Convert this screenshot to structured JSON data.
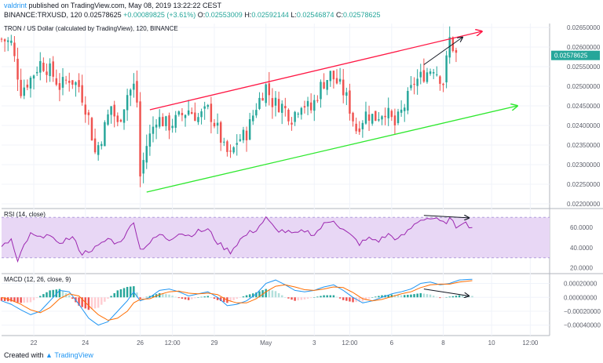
{
  "header": {
    "author": "valdrint",
    "published_text": "published on TradingView.com, May 08, 2019 13:22:22 CEST",
    "symbol": "BINANCE:TRXUSD, 120",
    "last": "0.02578625",
    "change": "+0.00089825 (+3.61%)",
    "o_label": "O:",
    "o_value": "0.02553009",
    "h_label": "H:",
    "h_value": "0.02592144",
    "l_label": "L:",
    "l_value": "0.02546874",
    "c_label": "C:",
    "c_value": "0.02578625"
  },
  "footer": {
    "created_with": "Created with",
    "brand": "TradingView"
  },
  "colors": {
    "up": "#26a69a",
    "down": "#ef5350",
    "channel_top": "#ff1744",
    "channel_bottom": "#2ee82e",
    "arrow": "#131722",
    "rsi_line": "#9c27b0",
    "rsi_band": "#e8d7f5",
    "macd_line": "#2196f3",
    "signal_line": "#ff6d00",
    "price_label_bg": "#26a69a"
  },
  "chart_data": [
    {
      "type": "candlestick",
      "title": "TRON / US Dollar (calculated by TradingView), 120, BINANCE",
      "ylim": [
        0.0219,
        0.0266
      ],
      "yticks": [
        "0.02650000",
        "0.02600000",
        "0.02550000",
        "0.02500000",
        "0.02450000",
        "0.02400000",
        "0.02350000",
        "0.02300000",
        "0.02250000",
        "0.02200000"
      ],
      "ytick_values": [
        0.0265,
        0.026,
        0.0255,
        0.025,
        0.0245,
        0.024,
        0.0235,
        0.023,
        0.0225,
        0.022
      ],
      "last_price": "0.02578625",
      "last_value": 0.02578625,
      "x_count": 142,
      "xlim": [
        0,
        170
      ],
      "xticks": [
        {
          "label": "22",
          "x": 10
        },
        {
          "label": "24",
          "x": 26
        },
        {
          "label": "26",
          "x": 43
        },
        {
          "label": "12:00",
          "x": 53
        },
        {
          "label": "29",
          "x": 66
        },
        {
          "label": "May",
          "x": 82
        },
        {
          "label": "3",
          "x": 97
        },
        {
          "label": "12:00",
          "x": 108
        },
        {
          "label": "6",
          "x": 121
        },
        {
          "label": "8",
          "x": 137
        },
        {
          "label": "10",
          "x": 152
        },
        {
          "label": "12:00",
          "x": 164
        }
      ],
      "close_anchors": [
        [
          0,
          0.0262
        ],
        [
          3,
          0.0261
        ],
        [
          6,
          0.0249
        ],
        [
          9,
          0.0252
        ],
        [
          12,
          0.0256
        ],
        [
          15,
          0.0254
        ],
        [
          18,
          0.025
        ],
        [
          21,
          0.0252
        ],
        [
          24,
          0.025
        ],
        [
          27,
          0.0242
        ],
        [
          29,
          0.0233
        ],
        [
          31,
          0.0237
        ],
        [
          34,
          0.0245
        ],
        [
          36,
          0.024
        ],
        [
          39,
          0.0248
        ],
        [
          41,
          0.025
        ],
        [
          42,
          0.0246
        ],
        [
          43,
          0.0227
        ],
        [
          45,
          0.0235
        ],
        [
          48,
          0.0242
        ],
        [
          52,
          0.024
        ],
        [
          55,
          0.0242
        ],
        [
          58,
          0.0244
        ],
        [
          61,
          0.0242
        ],
        [
          64,
          0.0244
        ],
        [
          67,
          0.0239
        ],
        [
          69,
          0.0234
        ],
        [
          71,
          0.0232
        ],
        [
          73,
          0.0236
        ],
        [
          76,
          0.0238
        ],
        [
          79,
          0.0245
        ],
        [
          82,
          0.025
        ],
        [
          84,
          0.0246
        ],
        [
          87,
          0.0245
        ],
        [
          90,
          0.0242
        ],
        [
          93,
          0.0246
        ],
        [
          96,
          0.0244
        ],
        [
          99,
          0.025
        ],
        [
          102,
          0.0253
        ],
        [
          105,
          0.025
        ],
        [
          107,
          0.0247
        ],
        [
          110,
          0.0239
        ],
        [
          113,
          0.0243
        ],
        [
          116,
          0.0242
        ],
        [
          119,
          0.0244
        ],
        [
          122,
          0.024
        ],
        [
          125,
          0.0245
        ],
        [
          128,
          0.0251
        ],
        [
          131,
          0.0253
        ],
        [
          134,
          0.0255
        ],
        [
          137,
          0.0251
        ],
        [
          139,
          0.0262
        ],
        [
          141,
          0.0258
        ]
      ],
      "channel_top": {
        "x1": 46,
        "y1": 0.0244,
        "x2": 149,
        "y2": 0.0264
      },
      "channel_bottom": {
        "x1": 45,
        "y1": 0.0223,
        "x2": 160,
        "y2": 0.0245
      },
      "arrow": {
        "x1": 131,
        "y1": 0.02555,
        "x2": 143,
        "y2": 0.02625
      }
    },
    {
      "type": "line",
      "title": "RSI (14, close)",
      "ylim": [
        15,
        78
      ],
      "yticks": [
        "60.0000",
        "40.0000",
        "20.0000"
      ],
      "ytick_values": [
        60,
        40,
        20
      ],
      "band": [
        30,
        70
      ],
      "anchors": [
        [
          0,
          40
        ],
        [
          3,
          48
        ],
        [
          5,
          25
        ],
        [
          7,
          42
        ],
        [
          9,
          53
        ],
        [
          12,
          49
        ],
        [
          14,
          55
        ],
        [
          17,
          44
        ],
        [
          20,
          48
        ],
        [
          22,
          50
        ],
        [
          25,
          34
        ],
        [
          27,
          37
        ],
        [
          30,
          41
        ],
        [
          33,
          49
        ],
        [
          36,
          44
        ],
        [
          39,
          55
        ],
        [
          41,
          67
        ],
        [
          43,
          38
        ],
        [
          46,
          45
        ],
        [
          49,
          53
        ],
        [
          52,
          48
        ],
        [
          55,
          55
        ],
        [
          58,
          52
        ],
        [
          61,
          56
        ],
        [
          64,
          58
        ],
        [
          67,
          45
        ],
        [
          69,
          40
        ],
        [
          71,
          36
        ],
        [
          74,
          48
        ],
        [
          77,
          55
        ],
        [
          79,
          58
        ],
        [
          82,
          69
        ],
        [
          85,
          58
        ],
        [
          88,
          56
        ],
        [
          91,
          53
        ],
        [
          94,
          57
        ],
        [
          97,
          53
        ],
        [
          100,
          63
        ],
        [
          103,
          68
        ],
        [
          105,
          60
        ],
        [
          107,
          55
        ],
        [
          109,
          50
        ],
        [
          111,
          44
        ],
        [
          114,
          49
        ],
        [
          117,
          47
        ],
        [
          120,
          53
        ],
        [
          123,
          48
        ],
        [
          126,
          56
        ],
        [
          129,
          66
        ],
        [
          131,
          69
        ],
        [
          134,
          69
        ],
        [
          137,
          64
        ],
        [
          139,
          68
        ],
        [
          141,
          61
        ],
        [
          143,
          66
        ],
        [
          145,
          62
        ],
        [
          146,
          60
        ]
      ],
      "arrow": {
        "x1": 131,
        "y1": 72,
        "x2": 145,
        "y2": 69.5
      }
    },
    {
      "type": "bar+line",
      "title": "MACD (12, 26, close, 9)",
      "ylim": [
        -0.00055,
        0.00033
      ],
      "yticks": [
        "0.00020000",
        "0.00000000",
        "−0.00020000",
        "−0.00040000"
      ],
      "ytick_values": [
        0.0002,
        0,
        -0.0002,
        -0.0004
      ],
      "macd_anchors": [
        [
          0,
          -5e-05
        ],
        [
          3,
          -0.0001
        ],
        [
          6,
          -0.00018
        ],
        [
          9,
          -0.00025
        ],
        [
          12,
          -0.0002
        ],
        [
          15,
          -5e-05
        ],
        [
          18,
          0.0001
        ],
        [
          21,
          8e-05
        ],
        [
          24,
          -0.0001
        ],
        [
          27,
          -0.0003
        ],
        [
          30,
          -0.0004
        ],
        [
          33,
          -0.00035
        ],
        [
          36,
          -0.0002
        ],
        [
          39,
          -5e-05
        ],
        [
          41,
          8e-05
        ],
        [
          43,
          -5e-05
        ],
        [
          46,
          0.0
        ],
        [
          49,
          0.0001
        ],
        [
          52,
          0.00012
        ],
        [
          55,
          8e-05
        ],
        [
          58,
          2e-05
        ],
        [
          61,
          5e-05
        ],
        [
          64,
          8e-05
        ],
        [
          67,
          0.0
        ],
        [
          70,
          -0.00012
        ],
        [
          73,
          -0.0001
        ],
        [
          76,
          -5e-05
        ],
        [
          79,
          5e-05
        ],
        [
          82,
          0.0002
        ],
        [
          85,
          0.00025
        ],
        [
          88,
          0.00018
        ],
        [
          91,
          0.0001
        ],
        [
          94,
          8e-05
        ],
        [
          97,
          0.0001
        ],
        [
          100,
          0.00015
        ],
        [
          103,
          0.00018
        ],
        [
          106,
          0.0001
        ],
        [
          109,
          0.0
        ],
        [
          112,
          -8e-05
        ],
        [
          115,
          -5e-05
        ],
        [
          118,
          0.0
        ],
        [
          121,
          5e-05
        ],
        [
          124,
          8e-05
        ],
        [
          127,
          0.00012
        ],
        [
          130,
          0.0002
        ],
        [
          133,
          0.00022
        ],
        [
          136,
          0.00018
        ],
        [
          139,
          0.0002
        ],
        [
          142,
          0.00025
        ],
        [
          146,
          0.00026
        ]
      ],
      "signal_anchors": [
        [
          0,
          0.0
        ],
        [
          3,
          -4e-05
        ],
        [
          6,
          -0.0001
        ],
        [
          9,
          -0.00018
        ],
        [
          12,
          -0.00022
        ],
        [
          15,
          -0.00015
        ],
        [
          18,
          -2e-05
        ],
        [
          21,
          5e-05
        ],
        [
          24,
          2e-05
        ],
        [
          27,
          -0.00012
        ],
        [
          30,
          -0.00025
        ],
        [
          33,
          -0.00033
        ],
        [
          36,
          -0.0003
        ],
        [
          39,
          -0.0002
        ],
        [
          41,
          -8e-05
        ],
        [
          43,
          -3e-05
        ],
        [
          46,
          -2e-05
        ],
        [
          49,
          4e-05
        ],
        [
          52,
          8e-05
        ],
        [
          55,
          9e-05
        ],
        [
          58,
          6e-05
        ],
        [
          61,
          5e-05
        ],
        [
          64,
          6e-05
        ],
        [
          67,
          4e-05
        ],
        [
          70,
          -4e-05
        ],
        [
          73,
          -8e-05
        ],
        [
          76,
          -8e-05
        ],
        [
          79,
          -2e-05
        ],
        [
          82,
          8e-05
        ],
        [
          85,
          0.00016
        ],
        [
          88,
          0.00018
        ],
        [
          91,
          0.00015
        ],
        [
          94,
          0.00011
        ],
        [
          97,
          0.0001
        ],
        [
          100,
          0.00012
        ],
        [
          103,
          0.00015
        ],
        [
          106,
          0.00014
        ],
        [
          109,
          7e-05
        ],
        [
          112,
          -2e-05
        ],
        [
          115,
          -5e-05
        ],
        [
          118,
          -3e-05
        ],
        [
          121,
          1e-05
        ],
        [
          124,
          5e-05
        ],
        [
          127,
          8e-05
        ],
        [
          130,
          0.00014
        ],
        [
          133,
          0.00018
        ],
        [
          136,
          0.00019
        ],
        [
          139,
          0.00019
        ],
        [
          142,
          0.00022
        ],
        [
          146,
          0.00024
        ]
      ],
      "arrow": {
        "x1": 131,
        "y1": 0.00012,
        "x2": 145,
        "y2": 2e-05
      }
    }
  ]
}
